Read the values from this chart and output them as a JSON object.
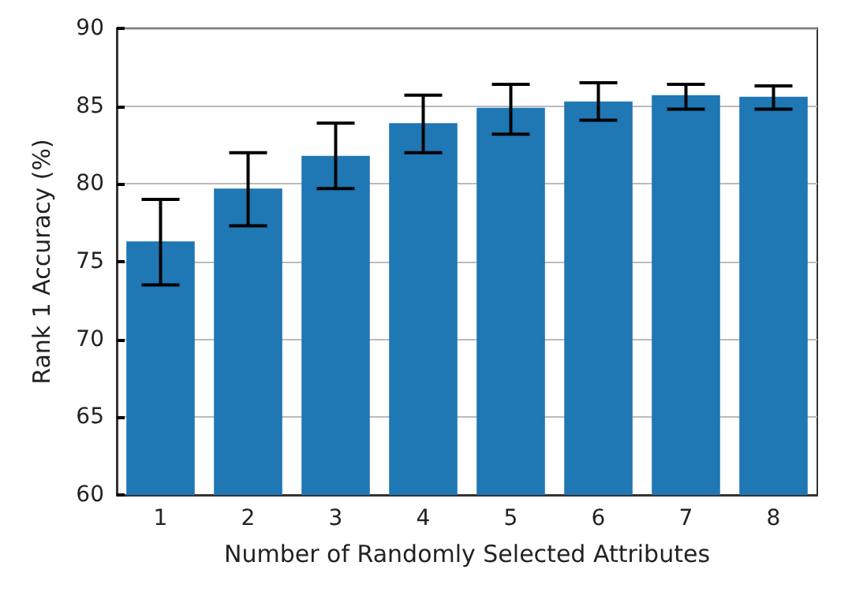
{
  "chart_data": {
    "type": "bar",
    "xlabel": "Number of Randomly Selected Attributes",
    "ylabel": "Rank 1 Accuracy (%)",
    "categories": [
      "1",
      "2",
      "3",
      "4",
      "5",
      "6",
      "7",
      "8"
    ],
    "values": [
      76.3,
      79.7,
      81.8,
      83.9,
      84.9,
      85.3,
      85.7,
      85.6
    ],
    "errors": [
      [
        73.5,
        79.0
      ],
      [
        77.3,
        82.0
      ],
      [
        79.7,
        83.9
      ],
      [
        82.0,
        85.7
      ],
      [
        83.2,
        86.4
      ],
      [
        84.1,
        86.5
      ],
      [
        84.8,
        86.4
      ],
      [
        84.8,
        86.3
      ]
    ],
    "color": "#1f77b4",
    "ylim": [
      60,
      90
    ],
    "yticks": [
      60,
      65,
      70,
      75,
      80,
      85,
      90
    ],
    "grid": "y"
  }
}
